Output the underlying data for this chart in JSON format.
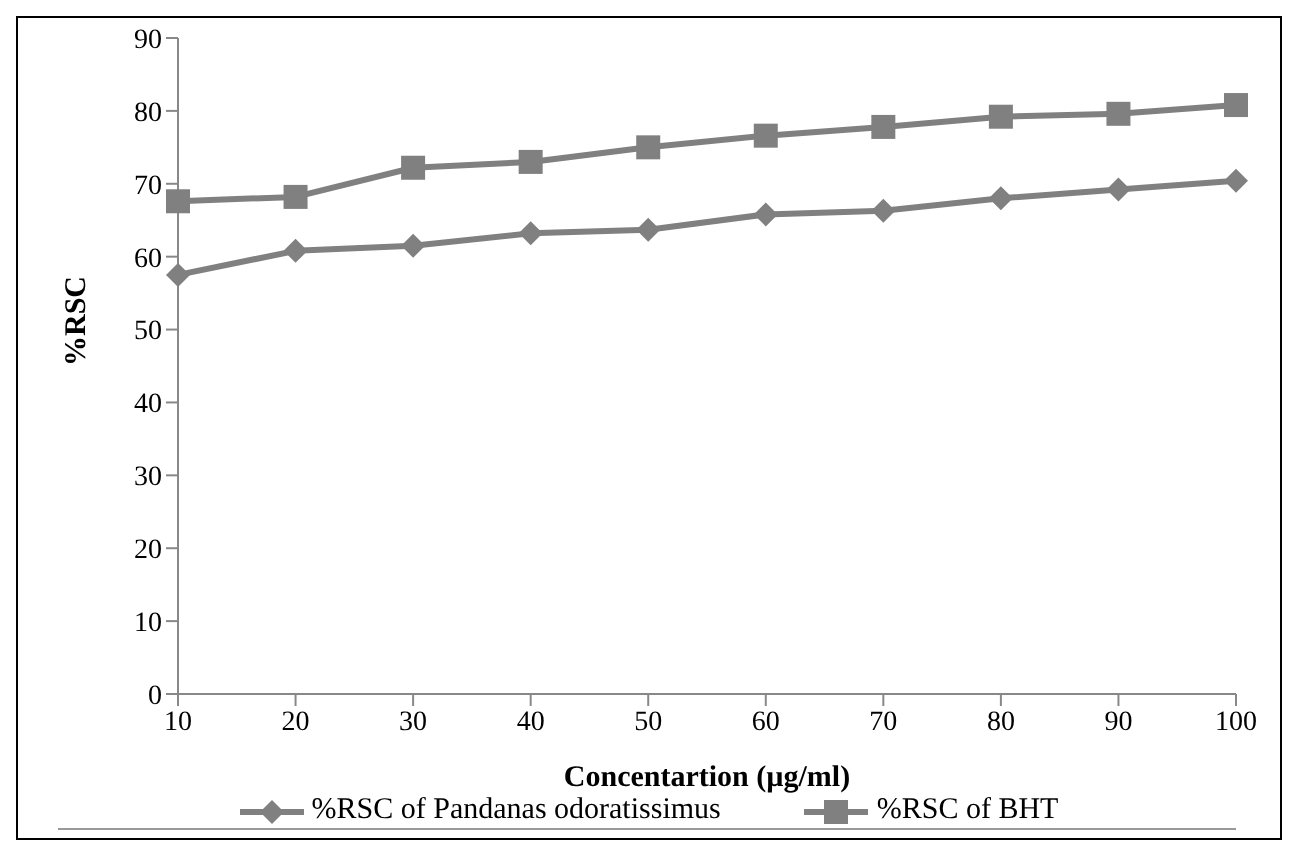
{
  "chart_data": {
    "type": "line",
    "xlabel": "Concentartion (µg/ml)",
    "ylabel": "%RSC",
    "categories": [
      "10",
      "20",
      "30",
      "40",
      "50",
      "60",
      "70",
      "80",
      "90",
      "100"
    ],
    "series": [
      {
        "name": "%RSC of Pandanas odoratissimus",
        "color": "#808080",
        "marker": "diamond",
        "values": [
          57.5,
          60.8,
          61.5,
          63.2,
          63.7,
          65.8,
          66.3,
          68.0,
          69.2,
          70.4
        ]
      },
      {
        "name": "%RSC of BHT",
        "color": "#808080",
        "marker": "square",
        "values": [
          67.6,
          68.2,
          72.2,
          73.0,
          75.0,
          76.6,
          77.8,
          79.2,
          79.6,
          80.8
        ]
      }
    ],
    "ylim": [
      0,
      90
    ],
    "yticks": [
      0,
      10,
      20,
      30,
      40,
      50,
      60,
      70,
      80,
      90
    ],
    "grid": false,
    "legend": "bottom",
    "line_style": "solid"
  }
}
